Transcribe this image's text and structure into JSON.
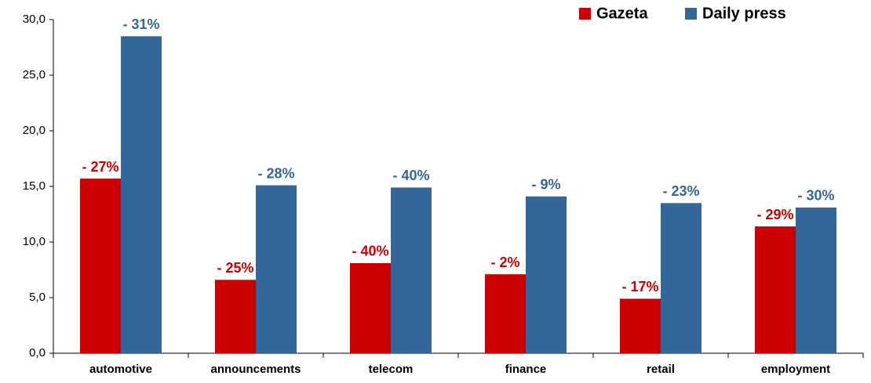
{
  "chart_data": {
    "type": "bar",
    "categories": [
      "automotive",
      "announcements",
      "telecom",
      "finance",
      "retail",
      "employment"
    ],
    "series": [
      {
        "name": "Gazeta",
        "color": "#cc0000",
        "values": [
          15.7,
          6.6,
          8.1,
          7.1,
          4.9,
          11.4
        ],
        "annotations": [
          "- 27%",
          "- 25%",
          "- 40%",
          "- 2%",
          "- 17%",
          "- 29%"
        ]
      },
      {
        "name": "Daily press",
        "color": "#336699",
        "values": [
          28.5,
          15.1,
          14.9,
          14.1,
          13.5,
          13.1
        ],
        "annotations": [
          "- 31%",
          "- 28%",
          "- 40%",
          "- 9%",
          "- 23%",
          "- 30%"
        ]
      }
    ],
    "ylim": [
      0,
      30
    ],
    "yticks": [
      {
        "value": 0,
        "label": "0,0"
      },
      {
        "value": 5,
        "label": "5,0"
      },
      {
        "value": 10,
        "label": "10,0"
      },
      {
        "value": 15,
        "label": "15,0"
      },
      {
        "value": 20,
        "label": "20,0"
      },
      {
        "value": 25,
        "label": "25,0"
      },
      {
        "value": 30,
        "label": "30,0"
      }
    ],
    "grid": false,
    "legend": "top-right"
  }
}
